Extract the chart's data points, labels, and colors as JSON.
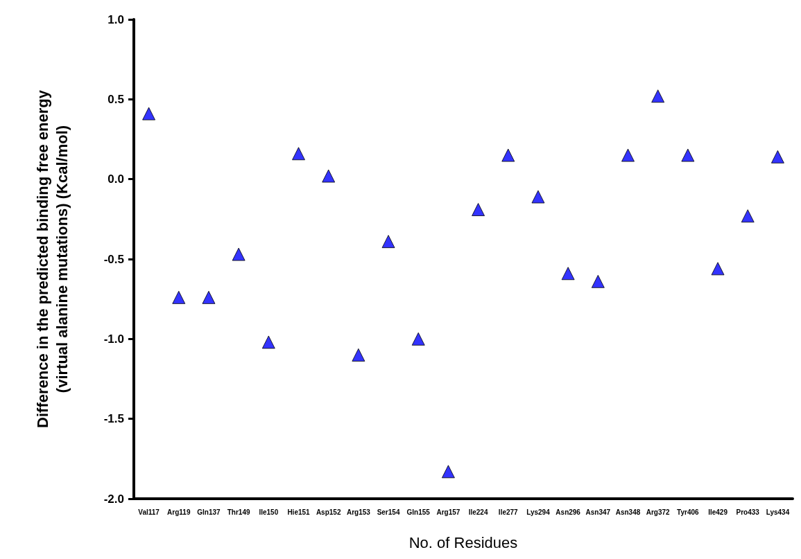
{
  "chart_data": {
    "type": "scatter",
    "xlabel": "No. of Residues",
    "ylabel": "Difference in the predicted binding free energy\n(virtual alanine mutations) (Kcal/mol)",
    "categories": [
      "Val117",
      "Arg119",
      "Gln137",
      "Thr149",
      "Ile150",
      "Hie151",
      "Asp152",
      "Arg153",
      "Ser154",
      "Gln155",
      "Arg157",
      "Ile224",
      "Ile277",
      "Lys294",
      "Asn296",
      "Asn347",
      "Asn348",
      "Arg372",
      "Tyr406",
      "Ile429",
      "Pro433",
      "Lys434"
    ],
    "series": [
      {
        "color": "#0000ff",
        "values": [
          0.41,
          -0.74,
          -0.74,
          -0.47,
          -1.02,
          0.16,
          0.02,
          -1.1,
          -0.39,
          -1.0,
          -1.83,
          -0.19,
          0.15,
          -0.11,
          -0.59,
          -0.64,
          0.15,
          0.52,
          0.15,
          -0.56,
          -0.23,
          0.14
        ]
      }
    ],
    "ylim": [
      -2.0,
      1.0
    ],
    "yticks": [
      {
        "value": -2,
        "label": "-2.0"
      },
      {
        "value": -1.5,
        "label": "-1.5"
      },
      {
        "value": -1,
        "label": "-1.0"
      },
      {
        "value": -0.5,
        "label": "-0.5"
      },
      {
        "value": 0,
        "label": "0.0"
      },
      {
        "value": 0.5,
        "label": "0.5"
      },
      {
        "value": 1,
        "label": "1.0"
      }
    ],
    "marker": "triangle"
  }
}
